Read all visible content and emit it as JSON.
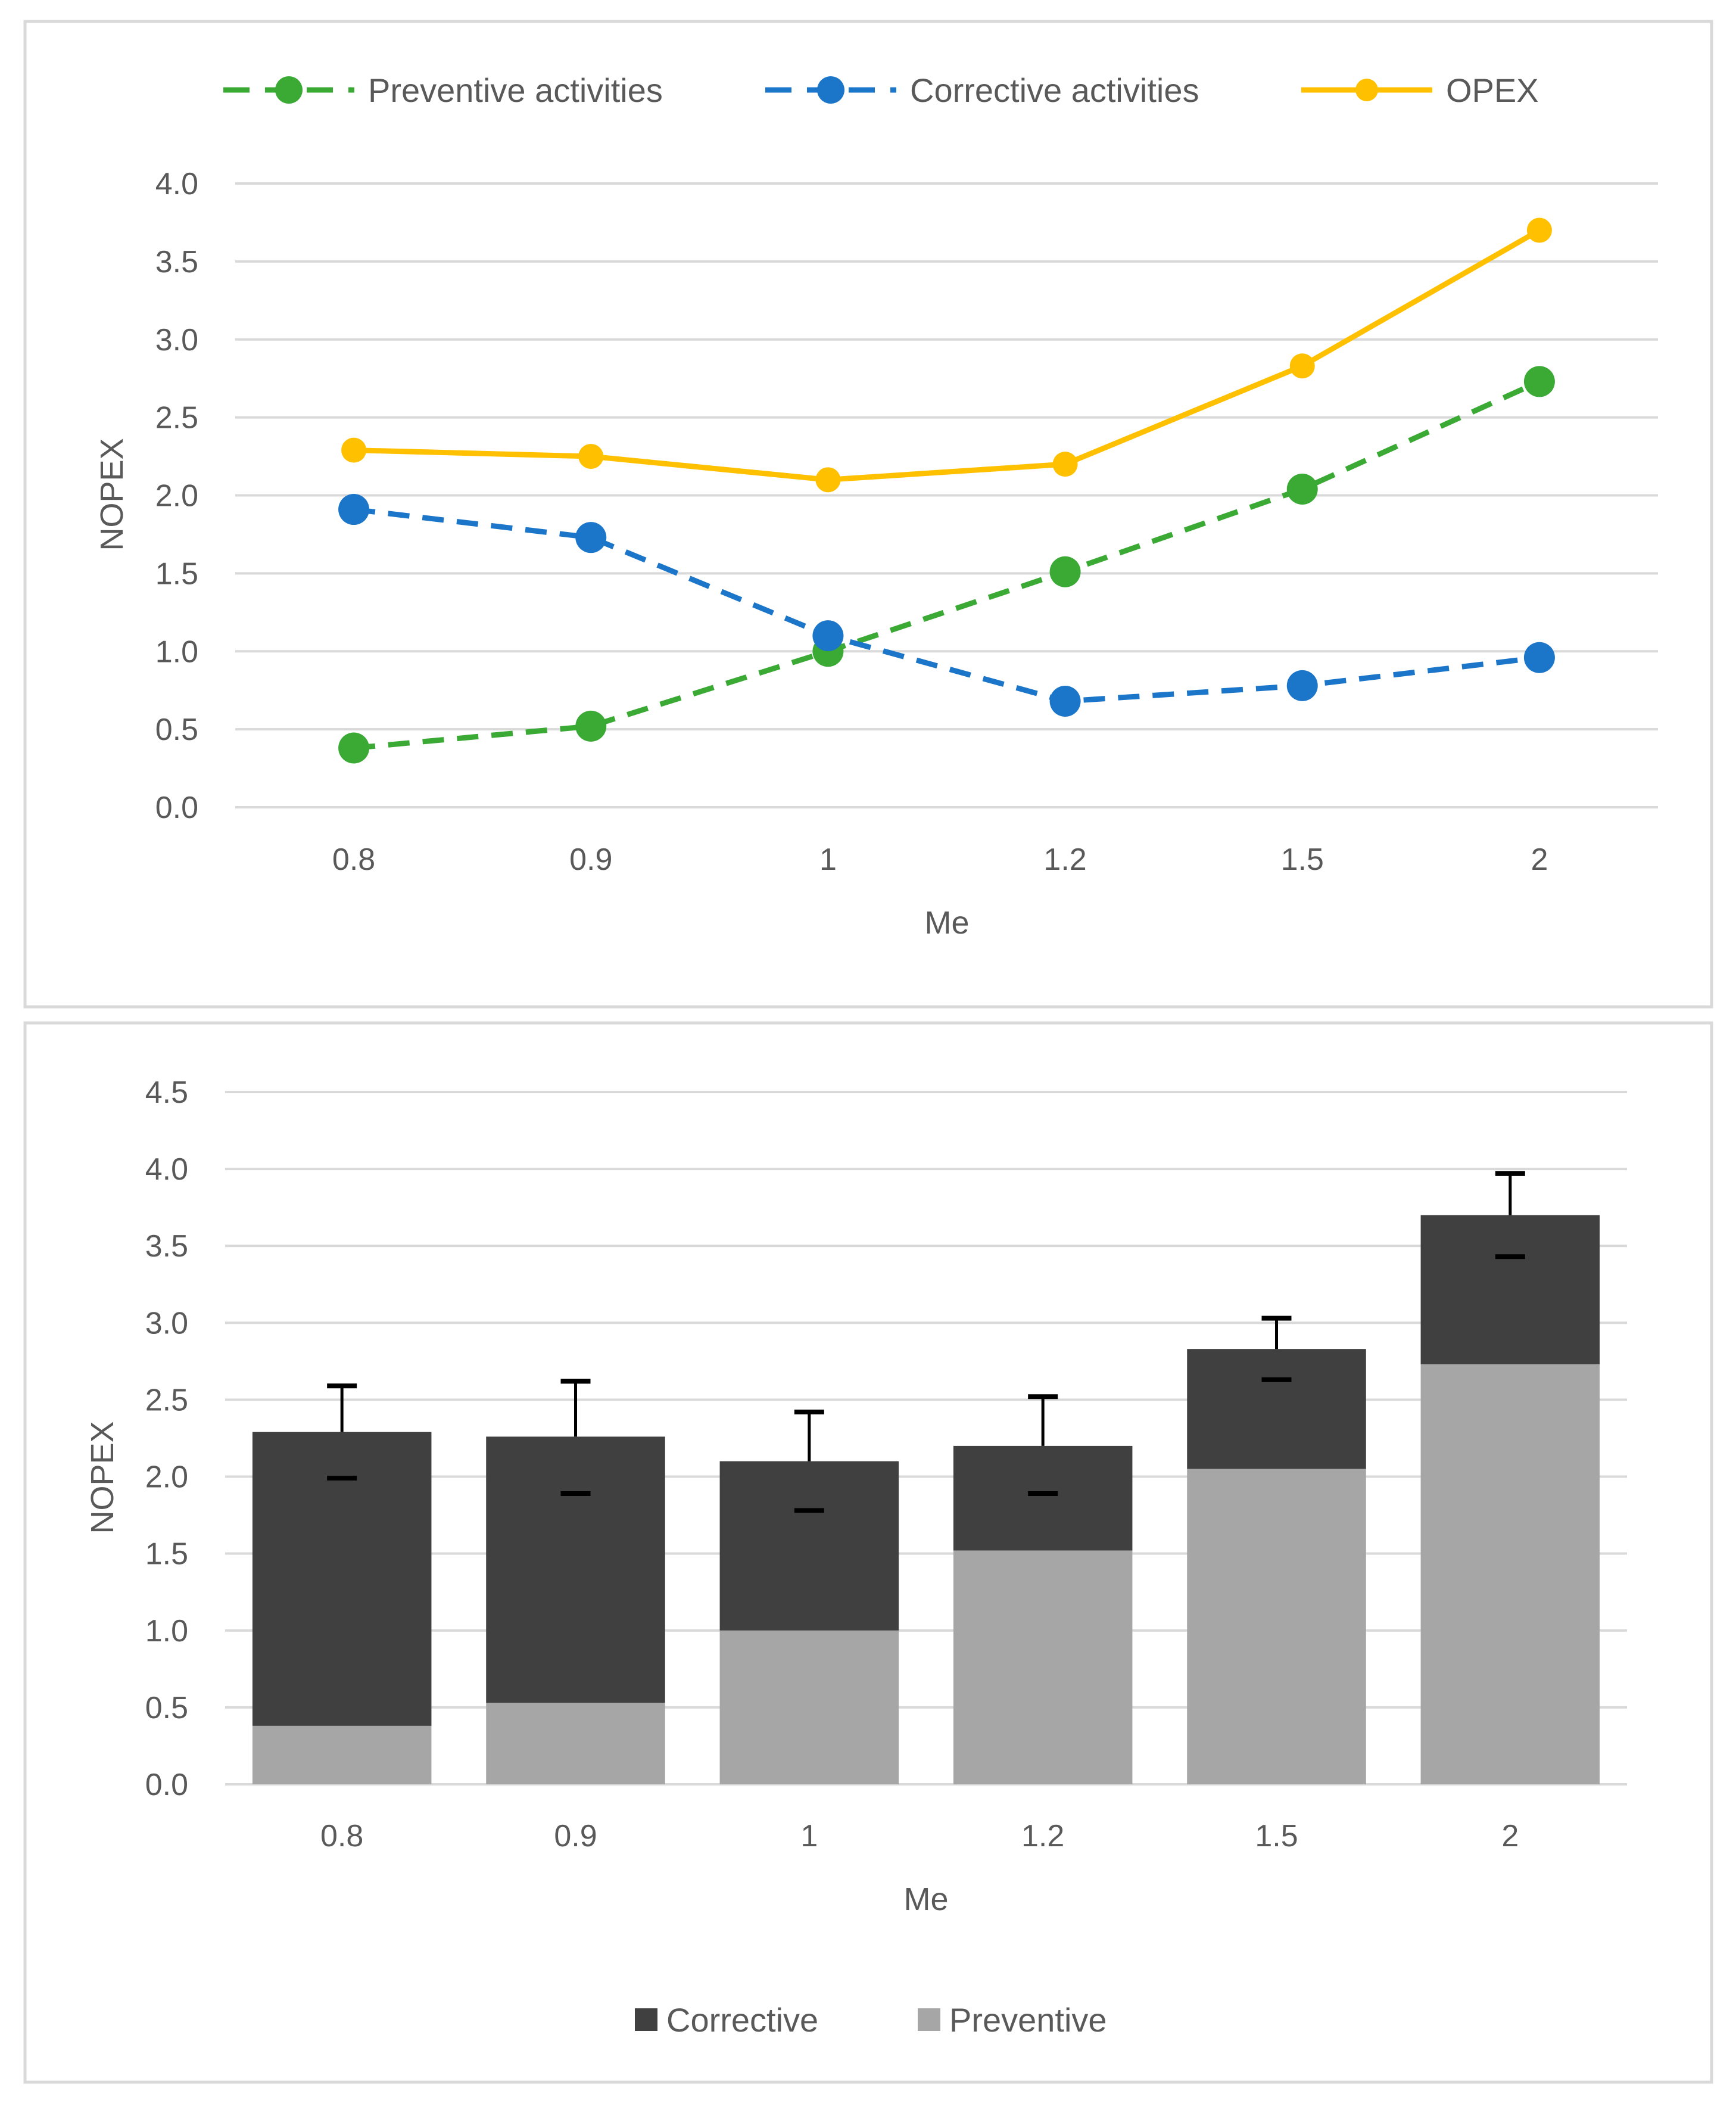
{
  "chart_data": [
    {
      "type": "line",
      "title": "",
      "xlabel": "Me",
      "ylabel": "NOPEX",
      "categories": [
        "0.8",
        "0.9",
        "1",
        "1.2",
        "1.5",
        "2"
      ],
      "ylim": [
        0,
        4
      ],
      "yticks": [
        "0.0",
        "0.5",
        "1.0",
        "1.5",
        "2.0",
        "2.5",
        "3.0",
        "3.5",
        "4.0"
      ],
      "legend_position": "top",
      "grid": true,
      "series": [
        {
          "name": "Preventive activities",
          "values": [
            0.38,
            0.52,
            1.0,
            1.51,
            2.04,
            2.73
          ],
          "color": "#3aaa35",
          "line_style": "dashed"
        },
        {
          "name": "Corrective activities",
          "values": [
            1.91,
            1.73,
            1.1,
            0.68,
            0.78,
            0.96
          ],
          "color": "#1b75c8",
          "line_style": "dashed"
        },
        {
          "name": "OPEX",
          "values": [
            2.29,
            2.25,
            2.1,
            2.2,
            2.83,
            3.7
          ],
          "color": "#ffc000",
          "line_style": "solid"
        }
      ]
    },
    {
      "type": "bar",
      "stacked": true,
      "title": "",
      "xlabel": "Me",
      "ylabel": "NOPEX",
      "categories": [
        "0.8",
        "0.9",
        "1",
        "1.2",
        "1.5",
        "2"
      ],
      "ylim": [
        0,
        4.5
      ],
      "yticks": [
        "0.0",
        "0.5",
        "1.0",
        "1.5",
        "2.0",
        "2.5",
        "3.0",
        "3.5",
        "4.0",
        "4.5"
      ],
      "legend_position": "bottom",
      "grid": true,
      "series": [
        {
          "name": "Preventive",
          "values": [
            0.38,
            0.53,
            1.0,
            1.52,
            2.05,
            2.73
          ],
          "color": "#a6a6a6"
        },
        {
          "name": "Corrective",
          "values": [
            1.91,
            1.73,
            1.1,
            0.68,
            0.78,
            0.97
          ],
          "color": "#404040"
        }
      ],
      "error_bars": {
        "upper": [
          2.59,
          2.62,
          2.42,
          2.52,
          3.03,
          3.97
        ],
        "lower": [
          1.99,
          1.89,
          1.78,
          1.89,
          2.63,
          3.43
        ]
      },
      "legend_order": [
        "Corrective",
        "Preventive"
      ]
    }
  ]
}
